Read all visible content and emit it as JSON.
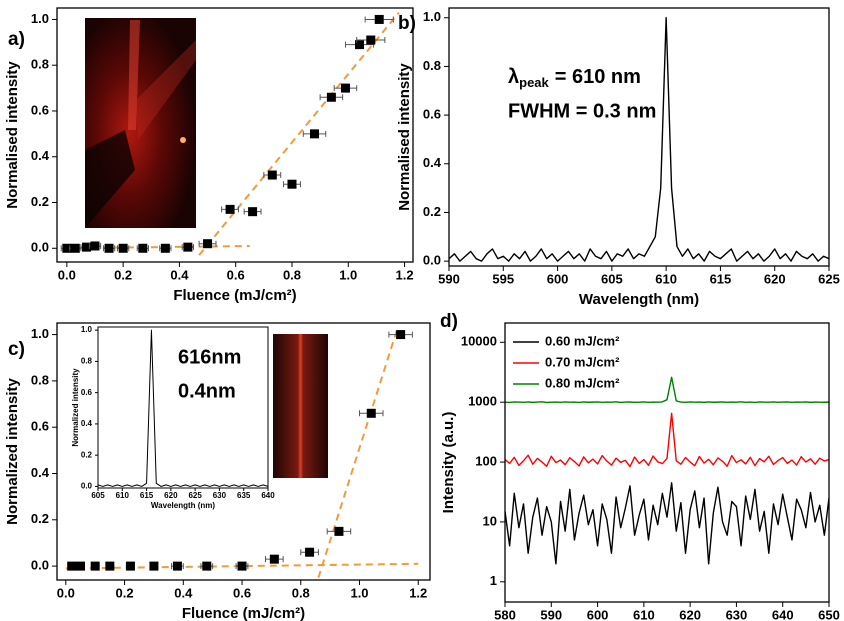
{
  "chart_data": [
    {
      "type": "scatter",
      "label": "a)",
      "xlabel": "Fluence (mJ/cm²)",
      "ylabel": "Normalised intensity",
      "color": "#000000",
      "x": [
        0.0,
        0.03,
        0.07,
        0.1,
        0.15,
        0.2,
        0.27,
        0.35,
        0.43,
        0.5,
        0.58,
        0.66,
        0.73,
        0.8,
        0.88,
        0.94,
        0.99,
        1.04,
        1.08,
        1.11
      ],
      "values": [
        0.0,
        0.0,
        0.005,
        0.01,
        0.0,
        0.0,
        0.0,
        0.0,
        0.005,
        0.02,
        0.17,
        0.16,
        0.32,
        0.28,
        0.5,
        0.66,
        0.7,
        0.89,
        0.91,
        1.0
      ],
      "xerr": [
        0.02,
        0.02,
        0.02,
        0.02,
        0.02,
        0.02,
        0.02,
        0.02,
        0.02,
        0.03,
        0.03,
        0.03,
        0.03,
        0.03,
        0.04,
        0.04,
        0.04,
        0.05,
        0.05,
        0.05
      ],
      "fit_color": "#f39a3c",
      "fit_lines": [
        {
          "x": [
            0.0,
            0.65
          ],
          "y": [
            0.0,
            0.01
          ]
        },
        {
          "x": [
            0.47,
            1.18
          ],
          "y": [
            -0.03,
            1.03
          ]
        }
      ],
      "xlim": [
        -0.035,
        1.23
      ],
      "ylim": [
        -0.06,
        1.05
      ],
      "xticks": [
        {
          "value": 0,
          "label": "0.0"
        },
        0.2,
        0.4,
        0.6,
        0.8,
        {
          "value": 1,
          "label": "1.0"
        },
        1.2
      ],
      "yticks": [
        {
          "value": 0,
          "label": "0.0"
        },
        0.2,
        0.4,
        0.6,
        0.8,
        {
          "value": 1,
          "label": "1.0"
        }
      ]
    },
    {
      "type": "line",
      "label": "b)",
      "xlabel": "Wavelength (nm)",
      "ylabel": "Normalised intensity",
      "annotations": [
        {
          "symbol": "λ",
          "subscript": "peak",
          "text": "= 610 nm"
        },
        {
          "text": "FWHM = 0.3 nm"
        }
      ],
      "x": [
        590,
        590.5,
        591,
        591.5,
        592,
        592.5,
        593,
        593.5,
        594,
        594.5,
        595,
        595.5,
        596,
        596.5,
        597,
        597.5,
        598,
        598.5,
        599,
        599.5,
        600,
        600.5,
        601,
        601.5,
        602,
        602.5,
        603,
        603.5,
        604,
        604.5,
        605,
        605.5,
        606,
        606.5,
        607,
        607.5,
        608,
        608.5,
        609,
        609.5,
        610,
        610.5,
        611,
        611.5,
        612,
        612.5,
        613,
        613.5,
        614,
        614.5,
        615,
        615.5,
        616,
        616.5,
        617,
        617.5,
        618,
        618.5,
        619,
        619.5,
        620,
        620.5,
        621,
        621.5,
        622,
        622.5,
        623,
        623.5,
        624,
        624.5,
        625
      ],
      "series": [
        {
          "color": "#000000",
          "values": [
            0.01,
            0.03,
            0.0,
            0.02,
            0.04,
            0.01,
            0.0,
            0.03,
            0.05,
            0.01,
            0.02,
            0.0,
            0.03,
            0.01,
            0.04,
            0.0,
            0.02,
            0.05,
            0.01,
            0.03,
            0.0,
            0.02,
            0.04,
            0.01,
            0.03,
            0.0,
            0.05,
            0.02,
            0.01,
            0.04,
            0.0,
            0.03,
            0.02,
            0.05,
            0.01,
            0.03,
            0.02,
            0.06,
            0.1,
            0.3,
            1.0,
            0.3,
            0.06,
            0.02,
            0.05,
            0.01,
            0.03,
            0.0,
            0.04,
            0.02,
            0.01,
            0.03,
            0.05,
            0.0,
            0.02,
            0.04,
            0.01,
            0.03,
            0.0,
            0.02,
            0.05,
            0.01,
            0.03,
            0.0,
            0.04,
            0.02,
            0.01,
            0.03,
            0.0,
            0.02,
            0.01
          ]
        }
      ],
      "xlim": [
        590,
        625
      ],
      "ylim": [
        -0.02,
        1.04
      ],
      "xticks": [
        590,
        595,
        600,
        605,
        610,
        615,
        620,
        625
      ],
      "yticks": [
        {
          "value": 0,
          "label": "0.0"
        },
        0.2,
        0.4,
        0.6,
        0.8,
        {
          "value": 1,
          "label": "1.0"
        }
      ]
    },
    {
      "type": "scatter",
      "label": "c)",
      "xlabel": "Fluence (mJ/cm²)",
      "ylabel": "Normalized intensity",
      "color": "#000000",
      "x": [
        0.02,
        0.05,
        0.1,
        0.15,
        0.22,
        0.3,
        0.38,
        0.48,
        0.6,
        0.71,
        0.83,
        0.93,
        1.04,
        1.14
      ],
      "values": [
        0,
        0,
        0,
        0,
        0,
        0,
        0,
        0,
        0,
        0.03,
        0.06,
        0.15,
        0.66,
        1.0
      ],
      "xerr": [
        0.01,
        0.01,
        0.01,
        0.01,
        0.01,
        0.01,
        0.02,
        0.02,
        0.02,
        0.03,
        0.03,
        0.04,
        0.04,
        0.04
      ],
      "fit_color": "#f39a3c",
      "fit_lines": [
        {
          "x": [
            0.0,
            1.2
          ],
          "y": [
            -0.01,
            0.01
          ]
        },
        {
          "x": [
            0.86,
            1.13
          ],
          "y": [
            -0.05,
            1.03
          ]
        }
      ],
      "xlim": [
        -0.03,
        1.24
      ],
      "ylim": [
        -0.06,
        1.05
      ],
      "xticks": [
        {
          "value": 0,
          "label": "0.0"
        },
        0.2,
        0.4,
        0.6,
        0.8,
        {
          "value": 1,
          "label": "1.0"
        },
        1.2
      ],
      "yticks": [
        {
          "value": 0,
          "label": "0.0"
        },
        0.2,
        0.4,
        0.6,
        0.8,
        {
          "value": 1,
          "label": "1.0"
        }
      ]
    },
    {
      "type": "line",
      "xlabel": "Wavelength (nm)",
      "ylabel": "Normalized intensity",
      "annotations": [
        {
          "text": "616nm"
        },
        {
          "text": "0.4nm"
        }
      ],
      "x": [
        605,
        606,
        607,
        608,
        609,
        610,
        611,
        612,
        613,
        614,
        615,
        616,
        617,
        618,
        619,
        620,
        621,
        622,
        623,
        624,
        625,
        626,
        627,
        628,
        629,
        630,
        631,
        632,
        633,
        634,
        635,
        636,
        637,
        638,
        639,
        640
      ],
      "series": [
        {
          "color": "#000000",
          "values": [
            0.01,
            0.0,
            0.01,
            0.0,
            0.01,
            0.0,
            0.01,
            0.0,
            0.01,
            0.0,
            0.02,
            1.0,
            0.02,
            0.0,
            0.01,
            0.0,
            0.01,
            0.0,
            0.01,
            0.0,
            0.01,
            0.0,
            0.01,
            0.0,
            0.01,
            0.0,
            0.01,
            0.0,
            0.01,
            0.0,
            0.01,
            0.0,
            0.01,
            0.0,
            0.01,
            0.0
          ]
        }
      ],
      "xlim": [
        605,
        640
      ],
      "ylim": [
        -0.01,
        1.02
      ],
      "xticks": [
        605,
        610,
        615,
        620,
        625,
        630,
        635,
        640
      ],
      "yticks": [
        {
          "value": 0,
          "label": "0.0"
        },
        0.2,
        0.4,
        0.6,
        0.8,
        {
          "value": 1,
          "label": "1.0"
        }
      ]
    },
    {
      "type": "line",
      "label": "d)",
      "xlabel": "Wavelength (nm)",
      "ylabel": "Intensity (a.u.)",
      "ylog": true,
      "x": [
        580,
        581,
        582,
        583,
        584,
        585,
        586,
        587,
        588,
        589,
        590,
        591,
        592,
        593,
        594,
        595,
        596,
        597,
        598,
        599,
        600,
        601,
        602,
        603,
        604,
        605,
        606,
        607,
        608,
        609,
        610,
        611,
        612,
        613,
        614,
        615,
        616,
        617,
        618,
        619,
        620,
        621,
        622,
        623,
        624,
        625,
        626,
        627,
        628,
        629,
        630,
        631,
        632,
        633,
        634,
        635,
        636,
        637,
        638,
        639,
        640,
        641,
        642,
        643,
        644,
        645,
        646,
        647,
        648,
        649,
        650
      ],
      "series": [
        {
          "name": "0.60 mJ/cm²",
          "color": "#000000",
          "values": [
            15,
            4,
            30,
            8,
            20,
            3,
            12,
            25,
            6,
            18,
            10,
            2,
            22,
            7,
            35,
            5,
            14,
            28,
            9,
            16,
            4,
            20,
            11,
            3,
            26,
            8,
            17,
            40,
            6,
            13,
            24,
            5,
            19,
            9,
            30,
            12,
            45,
            7,
            21,
            3,
            16,
            33,
            8,
            25,
            2,
            14,
            38,
            10,
            6,
            22,
            18,
            4,
            27,
            11,
            35,
            7,
            15,
            3,
            20,
            9,
            29,
            12,
            5,
            24,
            16,
            8,
            31,
            10,
            19,
            6,
            25
          ]
        },
        {
          "name": "0.70 mJ/cm²",
          "color": "#ff0000",
          "values": [
            110,
            95,
            120,
            88,
            105,
            130,
            92,
            115,
            100,
            85,
            125,
            98,
            108,
            90,
            118,
            102,
            86,
            122,
            97,
            112,
            93,
            128,
            104,
            89,
            116,
            99,
            107,
            84,
            121,
            95,
            110,
            88,
            126,
            101,
            94,
            115,
            650,
            105,
            92,
            119,
            100,
            87,
            124,
            96,
            111,
            90,
            117,
            103,
            85,
            128,
            98,
            109,
            93,
            120,
            87,
            114,
            101,
            125,
            91,
            106,
            119,
            95,
            108,
            89,
            123,
            100,
            113,
            92,
            116,
            104,
            110
          ]
        },
        {
          "name": "0.80 mJ/cm²",
          "color": "#008000",
          "values": [
            1000,
            990,
            1010,
            1005,
            995,
            1008,
            992,
            1003,
            1012,
            988,
            1000,
            1006,
            994,
            1010,
            998,
            1004,
            989,
            1011,
            997,
            1002,
            1008,
            993,
            1005,
            999,
            1012,
            991,
            1003,
            1007,
            996,
            1001,
            1009,
            994,
            1004,
            998,
            1010,
            1100,
            2600,
            1050,
            1003,
            995,
            1008,
            999,
            1006,
            992,
            1011,
            997,
            1002,
            1009,
            993,
            1005,
            1000,
            1012,
            996,
            1004,
            990,
            1007,
            1001,
            998,
            1010,
            994,
            1003,
            1008,
            995,
            1006,
            999,
            1011,
            992,
            1004,
            1000,
            997,
            1002
          ]
        }
      ],
      "xlim": [
        580,
        650
      ],
      "ylim": [
        0.46,
        21000
      ],
      "xticks": [
        580,
        590,
        600,
        610,
        620,
        630,
        640,
        650
      ],
      "yticks": [
        1,
        10,
        100,
        1000,
        10000
      ]
    }
  ]
}
